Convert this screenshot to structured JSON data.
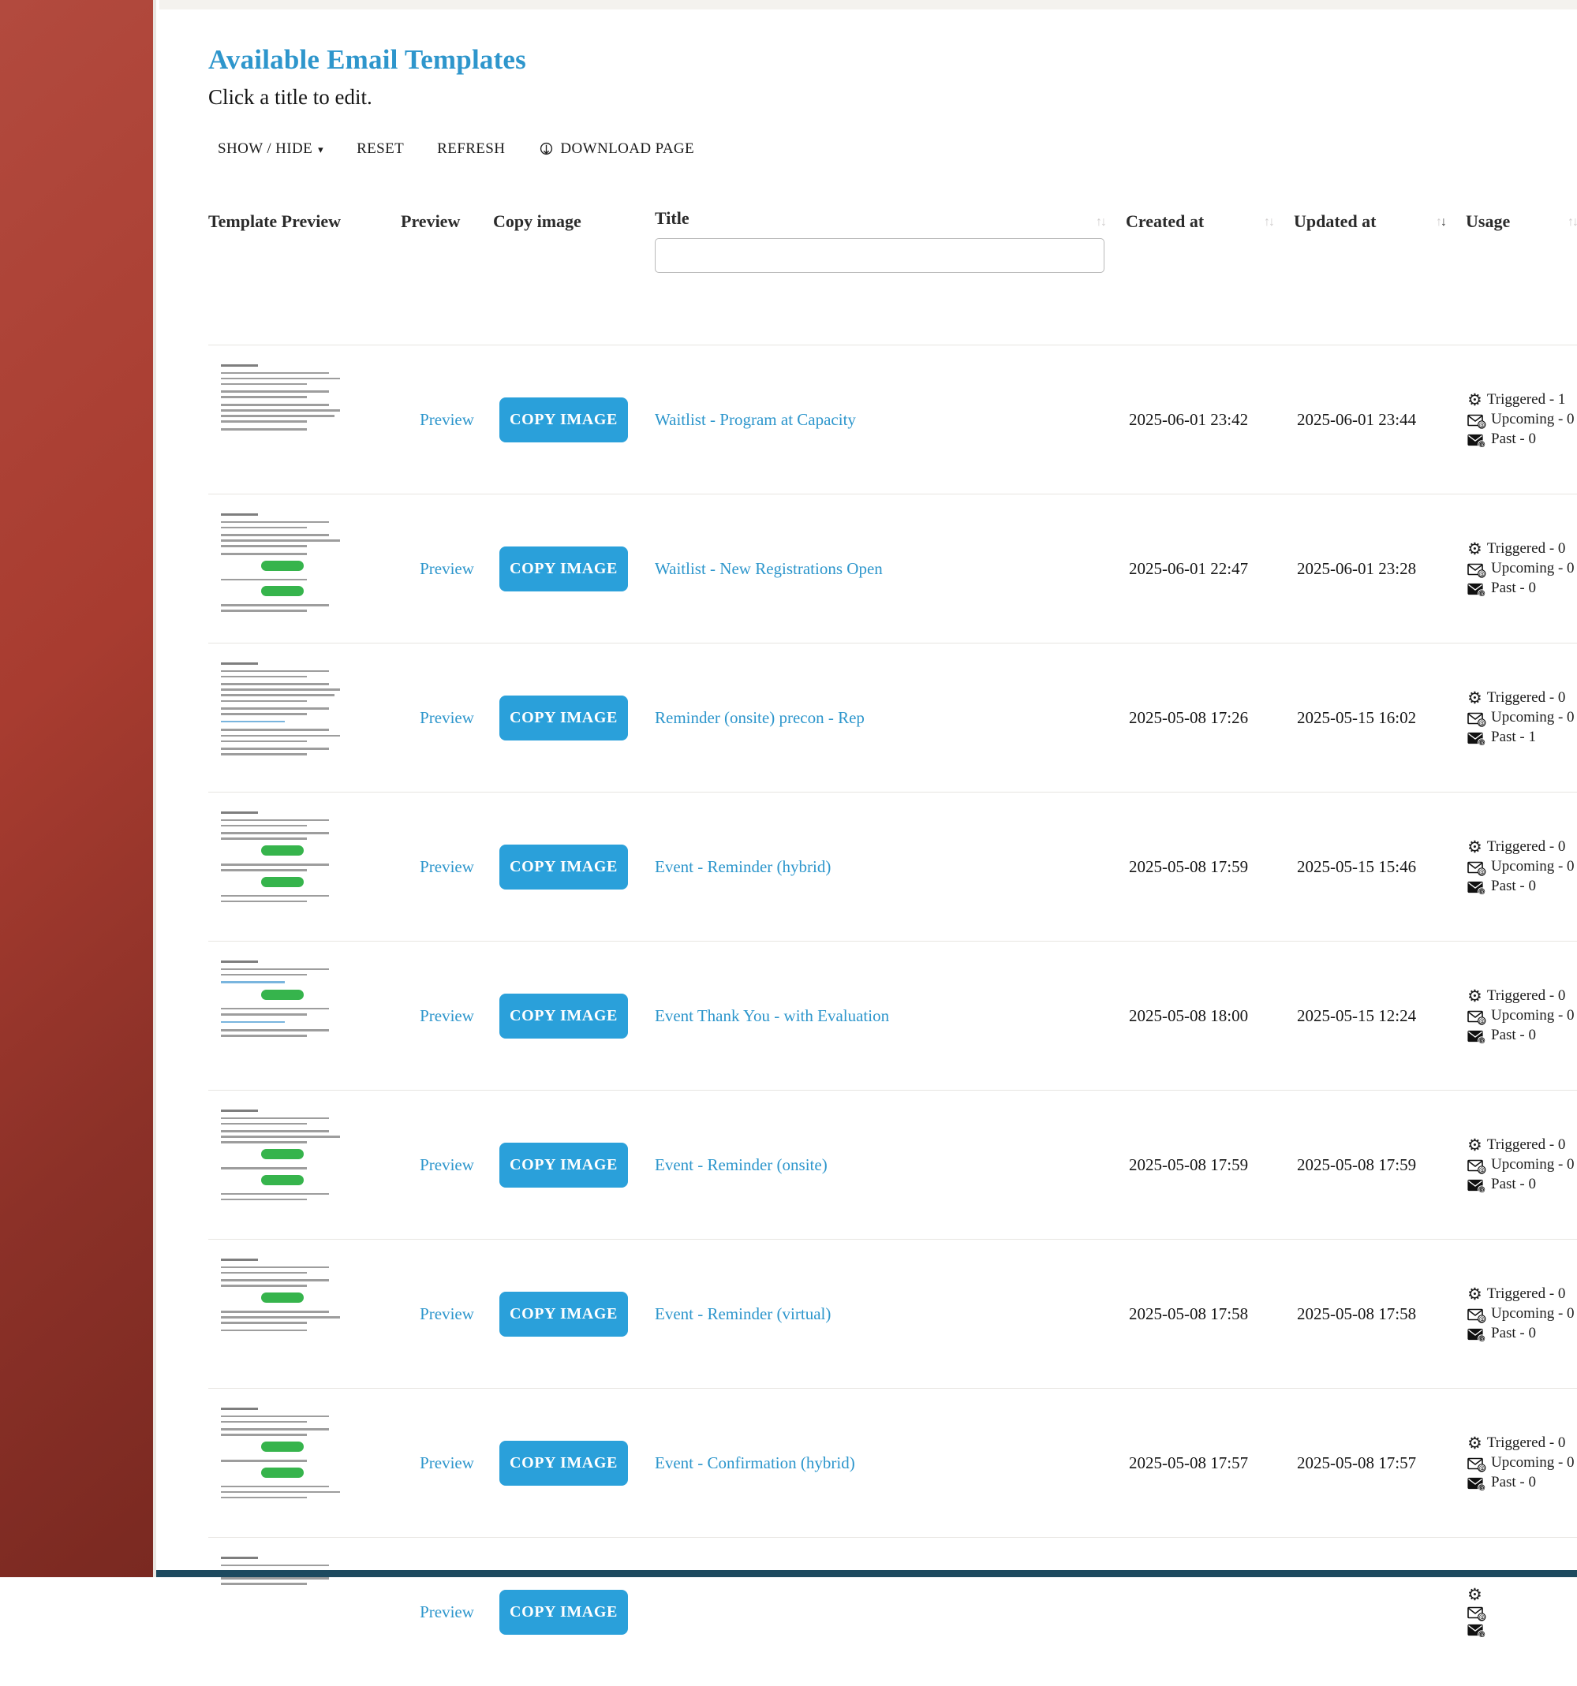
{
  "page": {
    "title": "Available Email Templates",
    "subtitle": "Click a title to edit."
  },
  "toolbar": {
    "show_hide_label": "SHOW / HIDE",
    "reset_label": "RESET",
    "refresh_label": "REFRESH",
    "download_label": "DOWNLOAD PAGE"
  },
  "table": {
    "headers": {
      "template_preview": "Template Preview",
      "preview": "Preview",
      "copy_image": "Copy image",
      "title": "Title",
      "created_at": "Created at",
      "updated_at": "Updated at",
      "usage": "Usage"
    },
    "search": {
      "value": "",
      "placeholder": ""
    },
    "sort": {
      "sorted_column": "Updated at",
      "direction": "descending"
    },
    "row_actions": {
      "preview_label": "Preview",
      "copy_image_label": "COPY IMAGE"
    },
    "rows": [
      {
        "title": "Waitlist - Program at Capacity",
        "created_at": "2025-06-01 23:42",
        "updated_at": "2025-06-01 23:44",
        "triggered_label": "Triggered - 1",
        "upcoming_label": "Upcoming - 0",
        "past_label": "Past - 0",
        "thumb": [
          "dear",
          "p3",
          "p2",
          "p4",
          "p1"
        ]
      },
      {
        "title": "Waitlist - New Registrations Open",
        "created_at": "2025-06-01 22:47",
        "updated_at": "2025-06-01 23:28",
        "triggered_label": "Triggered - 0",
        "upcoming_label": "Upcoming - 0",
        "past_label": "Past - 0",
        "thumb": [
          "dear",
          "p2",
          "p3",
          "p1",
          "btn",
          "p1",
          "btn",
          "p2"
        ]
      },
      {
        "title": "Reminder (onsite) precon - Rep",
        "created_at": "2025-05-08 17:26",
        "updated_at": "2025-05-15 16:02",
        "triggered_label": "Triggered - 0",
        "upcoming_label": "Upcoming - 0",
        "past_label": "Past - 1",
        "thumb": [
          "dear",
          "p2",
          "p4",
          "p2",
          "link",
          "p3",
          "p2"
        ]
      },
      {
        "title": "Event - Reminder (hybrid)",
        "created_at": "2025-05-08 17:59",
        "updated_at": "2025-05-15 15:46",
        "triggered_label": "Triggered - 0",
        "upcoming_label": "Upcoming - 0",
        "past_label": "Past - 0",
        "thumb": [
          "dear",
          "p2",
          "p2",
          "btn",
          "p2",
          "btn",
          "p2"
        ]
      },
      {
        "title": "Event Thank You - with Evaluation",
        "created_at": "2025-05-08 18:00",
        "updated_at": "2025-05-15 12:24",
        "triggered_label": "Triggered - 0",
        "upcoming_label": "Upcoming - 0",
        "past_label": "Past - 0",
        "thumb": [
          "dear",
          "p2",
          "link",
          "btn",
          "p2",
          "link",
          "p2"
        ]
      },
      {
        "title": "Event - Reminder (onsite)",
        "created_at": "2025-05-08 17:59",
        "updated_at": "2025-05-08 17:59",
        "triggered_label": "Triggered - 0",
        "upcoming_label": "Upcoming - 0",
        "past_label": "Past - 0",
        "thumb": [
          "dear",
          "p2",
          "p3",
          "btn",
          "p1",
          "btn",
          "p2"
        ]
      },
      {
        "title": "Event - Reminder (virtual)",
        "created_at": "2025-05-08 17:58",
        "updated_at": "2025-05-08 17:58",
        "triggered_label": "Triggered - 0",
        "upcoming_label": "Upcoming - 0",
        "past_label": "Past - 0",
        "thumb": [
          "dear",
          "p2",
          "p2",
          "btn",
          "p3",
          "p1"
        ]
      },
      {
        "title": "Event - Confirmation (hybrid)",
        "created_at": "2025-05-08 17:57",
        "updated_at": "2025-05-08 17:57",
        "triggered_label": "Triggered - 0",
        "upcoming_label": "Upcoming - 0",
        "past_label": "Past - 0",
        "thumb": [
          "dear",
          "p2",
          "p2",
          "btn",
          "p1",
          "btn",
          "p3"
        ]
      },
      {
        "thumb": [
          "dear",
          "p2",
          "p2"
        ]
      }
    ]
  },
  "colors": {
    "accent_blue": "#2e96cc",
    "button_blue": "#2aa0da",
    "sidebar_red": "#a83c30",
    "sidebar_red_dark": "#7a2921",
    "thumb_green": "#36b44c",
    "bottom_bar_teal": "#1d4a5f"
  }
}
